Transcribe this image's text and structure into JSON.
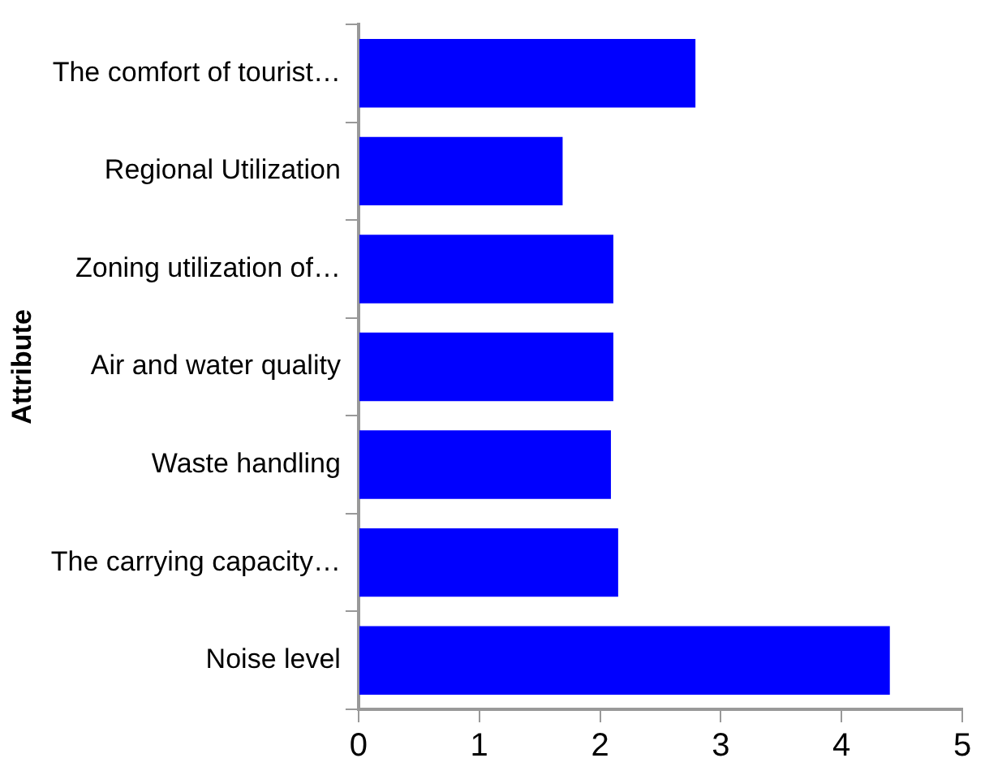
{
  "chart_data": {
    "type": "bar",
    "orientation": "horizontal",
    "ylabel": "Attribute",
    "categories": [
      "The comfort of tourist…",
      "Regional Utilization",
      "Zoning utilization of…",
      "Air and water quality",
      "Waste handling",
      "The carrying capacity…",
      "Noise level"
    ],
    "values": [
      2.79,
      1.69,
      2.11,
      2.11,
      2.09,
      2.15,
      4.4
    ],
    "color": "#0000ff",
    "xlim": [
      0,
      5
    ],
    "xticks": [
      0,
      1,
      2,
      3,
      4,
      5
    ],
    "grid": false,
    "legend": false
  }
}
